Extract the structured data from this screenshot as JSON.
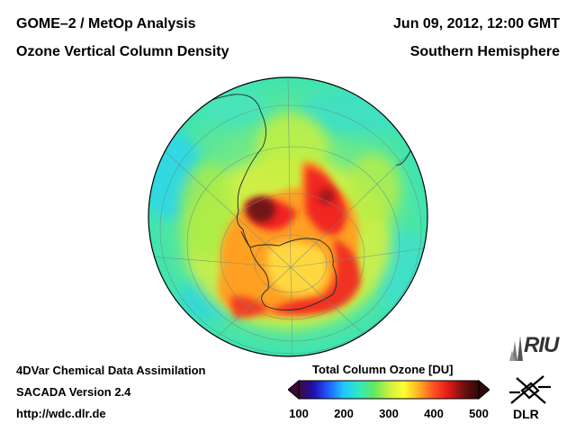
{
  "header": {
    "title_left": "GOME–2 / MetOp Analysis",
    "subtitle_left": "Ozone Vertical Column Density",
    "title_right": "Jun 09, 2012, 12:00 GMT",
    "subtitle_right": "Southern Hemisphere"
  },
  "footer": {
    "line1": "4DVar Chemical Data Assimilation",
    "line2": "SACADA Version 2.4",
    "line3": "http://wdc.dlr.de"
  },
  "colorbar": {
    "title": "Total Column Ozone [DU]",
    "ticks": [
      "100",
      "200",
      "300",
      "400",
      "500"
    ],
    "min": 100,
    "max": 500,
    "stops": [
      "#3a0a3a",
      "#2010b0",
      "#2060ff",
      "#20c8ff",
      "#30e8c0",
      "#60e860",
      "#c8f040",
      "#ffff30",
      "#ffb020",
      "#ff5020",
      "#e01818",
      "#701010",
      "#300808"
    ]
  },
  "logos": {
    "riu": "RIU",
    "dlr": "DLR"
  },
  "map": {
    "projection": "orthographic",
    "hemisphere": "south",
    "background_color": "#40e6aa"
  }
}
